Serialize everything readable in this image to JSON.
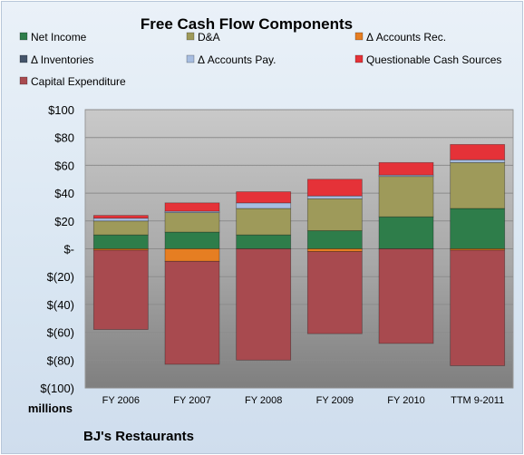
{
  "chart_data": {
    "type": "bar",
    "stacked": true,
    "title": "Free Cash Flow Components",
    "categories": [
      "FY 2006",
      "FY 2007",
      "FY 2008",
      "FY 2009",
      "FY 2010",
      "TTM 9-2011"
    ],
    "series": [
      {
        "name": "Net Income",
        "color": "#2e7d4a",
        "values": [
          10,
          12,
          10,
          13,
          23,
          29
        ]
      },
      {
        "name": "D&A",
        "color": "#9e9a5a",
        "values": [
          10,
          14,
          19,
          23,
          29,
          33
        ]
      },
      {
        "name": "Δ Accounts Rec.",
        "color": "#e67e22",
        "values": [
          -1,
          -9,
          0,
          -2,
          0,
          -1
        ]
      },
      {
        "name": "Δ Inventories",
        "color": "#44546a",
        "values": [
          0,
          0,
          0,
          0,
          0,
          0
        ]
      },
      {
        "name": "Δ Accounts Pay.",
        "color": "#a7bde0",
        "values": [
          2,
          1,
          4,
          2,
          1,
          2
        ]
      },
      {
        "name": "Questionable Cash Sources",
        "color": "#e53238",
        "values": [
          2,
          6,
          8,
          12,
          9,
          11
        ]
      },
      {
        "name": "Capital Expenditure",
        "color": "#a84a4f",
        "values": [
          -57,
          -74,
          -80,
          -59,
          -68,
          -83
        ]
      }
    ],
    "ylim": [
      -100,
      100
    ],
    "yticks": [
      100,
      80,
      60,
      40,
      20,
      0,
      -20,
      -40,
      -60,
      -80,
      -100
    ],
    "ytick_labels": [
      "$100",
      "$80",
      "$60",
      "$40",
      "$20",
      "$-",
      "$(20)",
      "$(40)",
      "$(60)",
      "$(80)",
      "$(100)"
    ],
    "units_label": "millions",
    "grid": true,
    "legend_position": "top"
  },
  "footer": {
    "company": "BJ's Restaurants"
  }
}
